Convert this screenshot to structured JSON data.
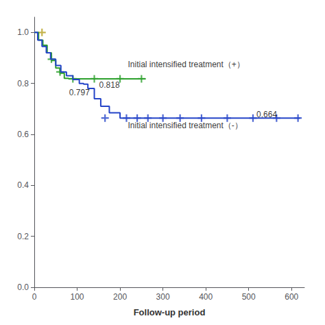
{
  "chart_data": {
    "type": "line",
    "title": "",
    "xlabel": "Follow-up period",
    "ylabel": "",
    "xlim": [
      0,
      630
    ],
    "ylim": [
      0.0,
      1.06
    ],
    "xticks": [
      0,
      100,
      200,
      300,
      400,
      500,
      600
    ],
    "yticks": [
      {
        "value": 0.0,
        "label": "0.0"
      },
      0.2,
      0.4,
      0.6,
      0.8,
      {
        "value": 1.0,
        "label": "1.0"
      }
    ],
    "grid": false,
    "series": [
      {
        "type": "step",
        "color": "#2ca02c",
        "x": [
          0,
          10,
          20,
          30,
          40,
          50,
          60,
          70,
          80,
          260
        ],
        "values": [
          1.0,
          0.97,
          0.95,
          0.92,
          0.89,
          0.86,
          0.84,
          0.82,
          0.818,
          0.818
        ]
      },
      {
        "type": "step",
        "color": "#2444c8",
        "x": [
          0,
          8,
          18,
          28,
          38,
          50,
          62,
          75,
          90,
          105,
          115,
          125,
          140,
          155,
          175,
          200,
          215,
          620
        ],
        "values": [
          1.0,
          0.97,
          0.945,
          0.92,
          0.895,
          0.87,
          0.845,
          0.83,
          0.815,
          0.8,
          0.797,
          0.78,
          0.74,
          0.71,
          0.685,
          0.664,
          0.664,
          0.664
        ]
      },
      {
        "type": "scatter",
        "marker": "plus",
        "color": "#2ca02c",
        "x": [
          40,
          60,
          90,
          140,
          200,
          250
        ],
        "values": [
          0.895,
          0.845,
          0.818,
          0.818,
          0.818,
          0.818
        ]
      },
      {
        "type": "scatter",
        "marker": "plus",
        "color": "#2444c8",
        "x": [
          165,
          215,
          240,
          265,
          300,
          340,
          390,
          450,
          510,
          565,
          615
        ],
        "values": [
          0.664,
          0.664,
          0.664,
          0.664,
          0.664,
          0.664,
          0.664,
          0.664,
          0.664,
          0.664,
          0.664
        ]
      },
      {
        "type": "scatter",
        "marker": "plus",
        "color": "#b5a020",
        "x": [
          18
        ],
        "values": [
          1.0
        ]
      }
    ],
    "annotations": [
      {
        "text": "0.797",
        "x": 78,
        "y": 0.765
      },
      {
        "text": "0.818",
        "x": 148,
        "y": 0.795
      },
      {
        "text": "0.664",
        "x": 515,
        "y": 0.678
      },
      {
        "text": "Initial intensified treatment（+）",
        "x": 215,
        "y": 0.875
      },
      {
        "text": "Initial intensified treatment（-）",
        "x": 215,
        "y": 0.635
      }
    ]
  }
}
